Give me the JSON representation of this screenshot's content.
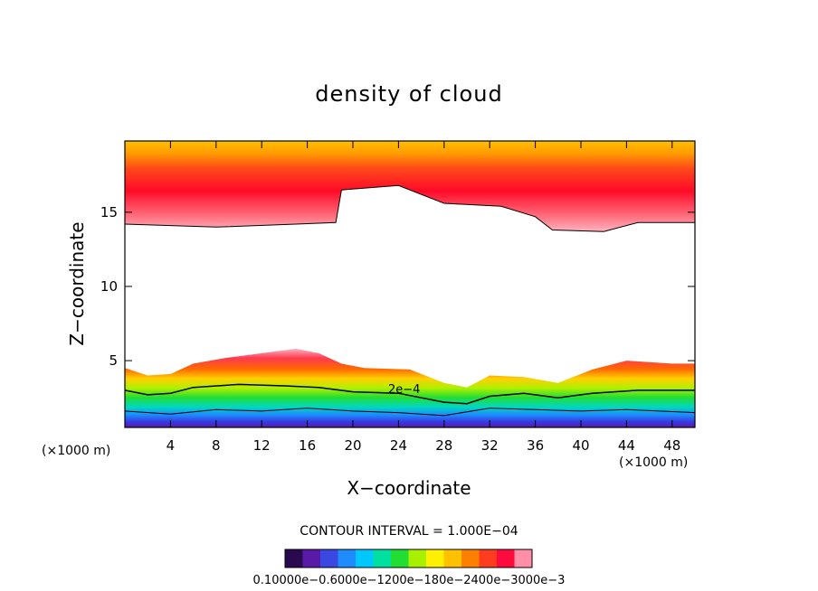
{
  "chart_data": {
    "type": "contour",
    "title": "density of cloud",
    "xlabel": "X−coordinate",
    "ylabel": "Z−coordinate",
    "x_unit": "(×1000 m)",
    "z_unit": "(×1000 m)",
    "xlim": [
      0,
      50
    ],
    "ylim": [
      0.5,
      19.8
    ],
    "x_ticks": [
      4,
      8,
      12,
      16,
      20,
      24,
      28,
      32,
      36,
      40,
      44,
      48
    ],
    "x_tick_labels": [
      "4",
      "8",
      "12",
      "16",
      "20",
      "24",
      "28",
      "32",
      "36",
      "40",
      "44",
      "48"
    ],
    "y_ticks": [
      5,
      10,
      15
    ],
    "y_tick_labels": [
      "5",
      "10",
      "15"
    ],
    "contour_interval_text": "CONTOUR INTERVAL = 1.000E−04",
    "contour_label": "2e−4",
    "contour_label_pos": [
      24.5,
      2.8
    ],
    "colorbar": {
      "labels_text": "0.10000e−0.6000e−1200e−180e−2400e−3000e−3",
      "colors": [
        "#2a0a4f",
        "#5a1aa8",
        "#3848e0",
        "#1e8cff",
        "#00c8ff",
        "#00e0a0",
        "#22dd33",
        "#a8f000",
        "#fff000",
        "#ffc000",
        "#ff8000",
        "#ff3c1e",
        "#ff0a3c",
        "#ff8fa8"
      ]
    },
    "upper_cloud": {
      "top_z": 19.8,
      "base": [
        [
          0,
          14.2
        ],
        [
          8,
          14.0
        ],
        [
          15,
          14.2
        ],
        [
          18.5,
          14.3
        ],
        [
          19,
          16.5
        ],
        [
          24,
          16.8
        ],
        [
          28,
          15.6
        ],
        [
          33,
          15.4
        ],
        [
          36,
          14.7
        ],
        [
          37.5,
          13.8
        ],
        [
          42,
          13.7
        ],
        [
          45,
          14.3
        ],
        [
          50,
          14.3
        ]
      ]
    },
    "lower_cloud": {
      "bottom_z": 0.5,
      "top": [
        [
          0,
          4.5
        ],
        [
          2,
          4.0
        ],
        [
          4,
          4.1
        ],
        [
          6,
          4.8
        ],
        [
          9,
          5.2
        ],
        [
          12,
          5.5
        ],
        [
          15,
          5.8
        ],
        [
          17,
          5.5
        ],
        [
          19,
          4.8
        ],
        [
          21,
          4.5
        ],
        [
          25,
          4.4
        ],
        [
          28,
          3.5
        ],
        [
          30,
          3.2
        ],
        [
          32,
          4.0
        ],
        [
          35,
          3.9
        ],
        [
          38,
          3.5
        ],
        [
          41,
          4.4
        ],
        [
          44,
          5.0
        ],
        [
          48,
          4.8
        ],
        [
          50,
          4.8
        ]
      ],
      "contour_2e-4": [
        [
          0,
          3.0
        ],
        [
          2,
          2.7
        ],
        [
          4,
          2.8
        ],
        [
          6,
          3.2
        ],
        [
          10,
          3.4
        ],
        [
          14,
          3.3
        ],
        [
          17,
          3.2
        ],
        [
          20,
          2.9
        ],
        [
          24,
          2.8
        ],
        [
          28,
          2.2
        ],
        [
          30,
          2.1
        ],
        [
          32,
          2.6
        ],
        [
          35,
          2.8
        ],
        [
          38,
          2.5
        ],
        [
          41,
          2.8
        ],
        [
          45,
          3.0
        ],
        [
          50,
          3.0
        ]
      ],
      "contour_low": [
        [
          0,
          1.6
        ],
        [
          4,
          1.4
        ],
        [
          8,
          1.7
        ],
        [
          12,
          1.6
        ],
        [
          16,
          1.8
        ],
        [
          20,
          1.6
        ],
        [
          24,
          1.5
        ],
        [
          28,
          1.3
        ],
        [
          32,
          1.8
        ],
        [
          36,
          1.7
        ],
        [
          40,
          1.6
        ],
        [
          44,
          1.7
        ],
        [
          50,
          1.5
        ]
      ]
    }
  }
}
